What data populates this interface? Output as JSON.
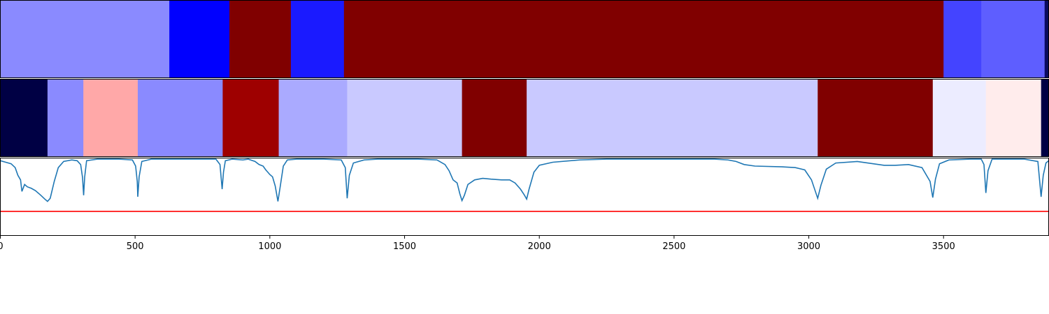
{
  "chart_data": {
    "type": "segmentation_strips_with_line",
    "x_range": [
      0,
      3890
    ],
    "x_ticks": [
      0,
      500,
      1000,
      1500,
      2000,
      2500,
      3000,
      3500
    ],
    "x_tick_labels": [
      "0",
      "500",
      "1000",
      "1500",
      "2000",
      "2500",
      "3000",
      "3500"
    ],
    "strips": [
      {
        "name": "top",
        "segments": [
          {
            "start": 0,
            "end": 627,
            "color": "#8a8aff"
          },
          {
            "start": 627,
            "end": 850,
            "color": "#0000ff"
          },
          {
            "start": 850,
            "end": 1078,
            "color": "#800000"
          },
          {
            "start": 1078,
            "end": 1275,
            "color": "#1a1aff"
          },
          {
            "start": 1275,
            "end": 3500,
            "color": "#800000"
          },
          {
            "start": 3500,
            "end": 3640,
            "color": "#4444ff"
          },
          {
            "start": 3640,
            "end": 3875,
            "color": "#5e5eff"
          },
          {
            "start": 3875,
            "end": 3890,
            "color": "#0b0b60"
          }
        ]
      },
      {
        "name": "middle",
        "segments": [
          {
            "start": 0,
            "end": 175,
            "color": "#000044"
          },
          {
            "start": 175,
            "end": 308,
            "color": "#8a8aff"
          },
          {
            "start": 308,
            "end": 510,
            "color": "#ffa8a8"
          },
          {
            "start": 510,
            "end": 825,
            "color": "#8a8aff"
          },
          {
            "start": 825,
            "end": 1033,
            "color": "#9e0000"
          },
          {
            "start": 1033,
            "end": 1287,
            "color": "#aaaaff"
          },
          {
            "start": 1287,
            "end": 1713,
            "color": "#c9c9ff"
          },
          {
            "start": 1713,
            "end": 1953,
            "color": "#800000"
          },
          {
            "start": 1953,
            "end": 3033,
            "color": "#c9c9ff"
          },
          {
            "start": 3033,
            "end": 3460,
            "color": "#800000"
          },
          {
            "start": 3460,
            "end": 3657,
            "color": "#ececff"
          },
          {
            "start": 3657,
            "end": 3862,
            "color": "#ffecec"
          },
          {
            "start": 3862,
            "end": 3890,
            "color": "#000044"
          }
        ]
      }
    ],
    "line": {
      "color": "#1f77b4",
      "y_range": [
        0,
        1
      ],
      "points": [
        [
          0,
          0.97
        ],
        [
          20,
          0.95
        ],
        [
          40,
          0.93
        ],
        [
          55,
          0.88
        ],
        [
          65,
          0.78
        ],
        [
          75,
          0.72
        ],
        [
          80,
          0.57
        ],
        [
          90,
          0.66
        ],
        [
          100,
          0.63
        ],
        [
          115,
          0.61
        ],
        [
          130,
          0.58
        ],
        [
          150,
          0.52
        ],
        [
          165,
          0.47
        ],
        [
          175,
          0.44
        ],
        [
          185,
          0.48
        ],
        [
          200,
          0.7
        ],
        [
          215,
          0.88
        ],
        [
          235,
          0.96
        ],
        [
          265,
          0.98
        ],
        [
          285,
          0.97
        ],
        [
          298,
          0.92
        ],
        [
          305,
          0.75
        ],
        [
          309,
          0.52
        ],
        [
          313,
          0.76
        ],
        [
          320,
          0.97
        ],
        [
          360,
          0.99
        ],
        [
          440,
          0.99
        ],
        [
          490,
          0.98
        ],
        [
          502,
          0.9
        ],
        [
          508,
          0.7
        ],
        [
          510,
          0.5
        ],
        [
          515,
          0.76
        ],
        [
          525,
          0.96
        ],
        [
          560,
          0.99
        ],
        [
          700,
          0.99
        ],
        [
          800,
          0.99
        ],
        [
          815,
          0.92
        ],
        [
          823,
          0.6
        ],
        [
          828,
          0.82
        ],
        [
          835,
          0.97
        ],
        [
          860,
          0.99
        ],
        [
          900,
          0.98
        ],
        [
          920,
          0.99
        ],
        [
          945,
          0.96
        ],
        [
          960,
          0.92
        ],
        [
          975,
          0.9
        ],
        [
          985,
          0.85
        ],
        [
          1000,
          0.79
        ],
        [
          1010,
          0.76
        ],
        [
          1020,
          0.64
        ],
        [
          1030,
          0.44
        ],
        [
          1038,
          0.62
        ],
        [
          1050,
          0.9
        ],
        [
          1065,
          0.98
        ],
        [
          1100,
          0.99
        ],
        [
          1200,
          0.99
        ],
        [
          1265,
          0.98
        ],
        [
          1280,
          0.88
        ],
        [
          1287,
          0.48
        ],
        [
          1295,
          0.78
        ],
        [
          1310,
          0.94
        ],
        [
          1350,
          0.98
        ],
        [
          1400,
          0.99
        ],
        [
          1550,
          0.99
        ],
        [
          1620,
          0.98
        ],
        [
          1650,
          0.92
        ],
        [
          1665,
          0.84
        ],
        [
          1680,
          0.72
        ],
        [
          1695,
          0.68
        ],
        [
          1705,
          0.54
        ],
        [
          1713,
          0.45
        ],
        [
          1722,
          0.52
        ],
        [
          1735,
          0.66
        ],
        [
          1760,
          0.72
        ],
        [
          1790,
          0.74
        ],
        [
          1820,
          0.73
        ],
        [
          1860,
          0.72
        ],
        [
          1890,
          0.72
        ],
        [
          1910,
          0.68
        ],
        [
          1930,
          0.6
        ],
        [
          1945,
          0.52
        ],
        [
          1953,
          0.47
        ],
        [
          1962,
          0.6
        ],
        [
          1980,
          0.82
        ],
        [
          2000,
          0.91
        ],
        [
          2050,
          0.95
        ],
        [
          2150,
          0.98
        ],
        [
          2250,
          0.99
        ],
        [
          2650,
          0.99
        ],
        [
          2700,
          0.98
        ],
        [
          2730,
          0.96
        ],
        [
          2760,
          0.92
        ],
        [
          2800,
          0.9
        ],
        [
          2900,
          0.89
        ],
        [
          2950,
          0.88
        ],
        [
          2985,
          0.85
        ],
        [
          3010,
          0.72
        ],
        [
          3033,
          0.48
        ],
        [
          3045,
          0.65
        ],
        [
          3065,
          0.86
        ],
        [
          3100,
          0.94
        ],
        [
          3180,
          0.96
        ],
        [
          3280,
          0.91
        ],
        [
          3320,
          0.91
        ],
        [
          3370,
          0.92
        ],
        [
          3420,
          0.88
        ],
        [
          3450,
          0.7
        ],
        [
          3460,
          0.49
        ],
        [
          3470,
          0.73
        ],
        [
          3485,
          0.93
        ],
        [
          3520,
          0.98
        ],
        [
          3600,
          0.99
        ],
        [
          3640,
          0.99
        ],
        [
          3650,
          0.92
        ],
        [
          3657,
          0.55
        ],
        [
          3665,
          0.84
        ],
        [
          3680,
          0.99
        ],
        [
          3800,
          0.99
        ],
        [
          3850,
          0.96
        ],
        [
          3862,
          0.5
        ],
        [
          3870,
          0.78
        ],
        [
          3880,
          0.94
        ],
        [
          3890,
          0.97
        ]
      ]
    },
    "threshold": {
      "value": 0.31,
      "color": "#ff0000"
    }
  }
}
